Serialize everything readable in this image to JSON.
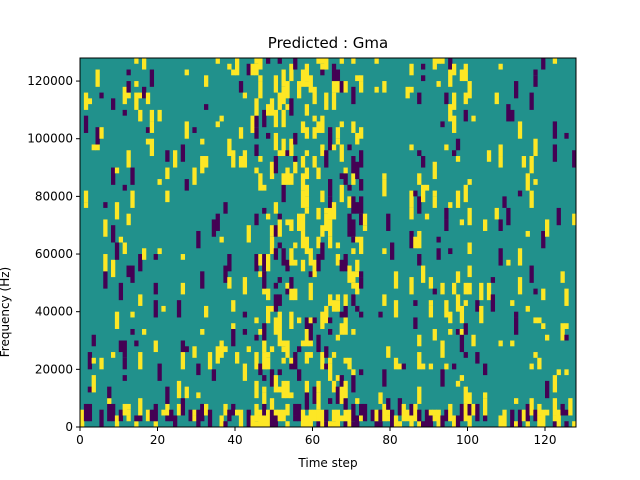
{
  "chart_data": {
    "type": "heatmap",
    "title": "Predicted : Gma",
    "xlabel": "Time step",
    "ylabel": "Frequency (Hz)",
    "xlim": [
      0,
      128
    ],
    "ylim": [
      0,
      128000
    ],
    "x_ticks": [
      0,
      20,
      40,
      60,
      80,
      100,
      120
    ],
    "x_tick_labels": [
      "0",
      "20",
      "40",
      "60",
      "80",
      "100",
      "120"
    ],
    "y_ticks": [
      0,
      20000,
      40000,
      60000,
      80000,
      100000,
      120000
    ],
    "y_tick_labels": [
      "0",
      "20000",
      "40000",
      "60000",
      "80000",
      "100000",
      "120000"
    ],
    "grid": false,
    "colorscale": {
      "low": "#440154",
      "background": "#21918c",
      "high": "#fde725"
    },
    "bins": {
      "time_steps": 128,
      "freq_bins": 64,
      "freq_bin_width_hz": 2000
    }
  }
}
